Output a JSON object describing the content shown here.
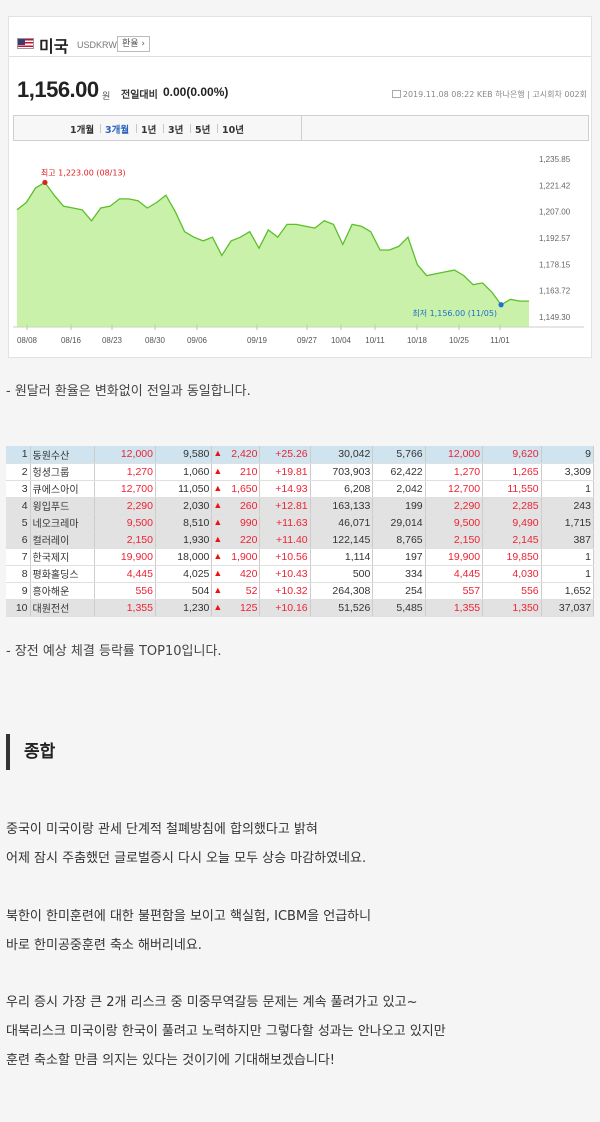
{
  "widget": {
    "title": "미국",
    "code": "USDKRW",
    "button_label": "환율 ›",
    "price": "1,156.00",
    "unit": "원",
    "change_label": "전일대비",
    "change_value": "0.00",
    "change_pct": "(0.00%)",
    "meta": "2019.11.08 08:22  KEB 하나은행 | 고시회차 002회",
    "flag_icon": "us-flag-icon",
    "tabs": [
      {
        "label": "1개월",
        "selected": false
      },
      {
        "label": "3개월",
        "selected": true
      },
      {
        "label": "1년",
        "selected": false
      },
      {
        "label": "3년",
        "selected": false
      },
      {
        "label": "5년",
        "selected": false
      },
      {
        "label": "10년",
        "selected": false
      }
    ]
  },
  "chart_data": {
    "type": "area",
    "ylim": [
      1149.3,
      1235.85
    ],
    "y_ticks": [
      "1,235.85",
      "1,221.42",
      "1,207.00",
      "1,192.57",
      "1,178.15",
      "1,163.72",
      "1,149.30"
    ],
    "x_ticks": [
      "08/08",
      "08/16",
      "08/23",
      "08/30",
      "09/06",
      "09/19",
      "09/27",
      "10/04",
      "10/11",
      "10/18",
      "10/25",
      "11/01"
    ],
    "high_label": "최고 1,223.00 (08/13)",
    "low_label": "최저 1,156.00 (11/05)",
    "values": [
      1208,
      1212,
      1220,
      1223,
      1216,
      1210,
      1209,
      1208,
      1202,
      1209,
      1210,
      1214,
      1214,
      1213,
      1209,
      1212,
      1216,
      1207,
      1196,
      1193,
      1191,
      1193,
      1183,
      1191,
      1193,
      1196,
      1187,
      1197,
      1193,
      1200,
      1200,
      1199,
      1198,
      1202,
      1200,
      1189,
      1200,
      1199,
      1196,
      1186,
      1186,
      1188,
      1193,
      1178,
      1172,
      1173,
      1174,
      1175,
      1172,
      1167,
      1168,
      1163,
      1156,
      1159,
      1158,
      1158
    ],
    "line_color": "#5cbf2a",
    "fill_color": "#b8ec8e",
    "high_color": "#e02020",
    "low_color": "#1e6fd0"
  },
  "caption1": "- 원달러 환율은 변화없이 전일과 동일합니다.",
  "table": {
    "rows": [
      {
        "rank": "1",
        "name": "동원수산",
        "c1": "12,000",
        "c2": "9,580",
        "chg": "2,420",
        "pct": "+25.26",
        "c5": "30,042",
        "c6": "5,766",
        "c7": "12,000",
        "c8": "9,620",
        "c9": "9",
        "style": "hl"
      },
      {
        "rank": "2",
        "name": "헝셩그룹",
        "c1": "1,270",
        "c2": "1,060",
        "chg": "210",
        "pct": "+19.81",
        "c5": "703,903",
        "c6": "62,422",
        "c7": "1,270",
        "c8": "1,265",
        "c9": "3,309",
        "style": "white"
      },
      {
        "rank": "3",
        "name": "큐에스아이",
        "c1": "12,700",
        "c2": "11,050",
        "chg": "1,650",
        "pct": "+14.93",
        "c5": "6,208",
        "c6": "2,042",
        "c7": "12,700",
        "c8": "11,550",
        "c9": "1",
        "style": "white"
      },
      {
        "rank": "4",
        "name": "윙입푸드",
        "c1": "2,290",
        "c2": "2,030",
        "chg": "260",
        "pct": "+12.81",
        "c5": "163,133",
        "c6": "199",
        "c7": "2,290",
        "c8": "2,285",
        "c9": "243",
        "style": "gray"
      },
      {
        "rank": "5",
        "name": "네오크레마",
        "c1": "9,500",
        "c2": "8,510",
        "chg": "990",
        "pct": "+11.63",
        "c5": "46,071",
        "c6": "29,014",
        "c7": "9,500",
        "c8": "9,490",
        "c9": "1,715",
        "style": "gray"
      },
      {
        "rank": "6",
        "name": "컬러레이",
        "c1": "2,150",
        "c2": "1,930",
        "chg": "220",
        "pct": "+11.40",
        "c5": "122,145",
        "c6": "8,765",
        "c7": "2,150",
        "c8": "2,145",
        "c9": "387",
        "style": "gray"
      },
      {
        "rank": "7",
        "name": "한국제지",
        "c1": "19,900",
        "c2": "18,000",
        "chg": "1,900",
        "pct": "+10.56",
        "c5": "1,114",
        "c6": "197",
        "c7": "19,900",
        "c8": "19,850",
        "c9": "1",
        "style": "white"
      },
      {
        "rank": "8",
        "name": "평화홀딩스",
        "c1": "4,445",
        "c2": "4,025",
        "chg": "420",
        "pct": "+10.43",
        "c5": "500",
        "c6": "334",
        "c7": "4,445",
        "c8": "4,030",
        "c9": "1",
        "style": "white"
      },
      {
        "rank": "9",
        "name": "흥아해운",
        "c1": "556",
        "c2": "504",
        "chg": "52",
        "pct": "+10.32",
        "c5": "264,308",
        "c6": "254",
        "c7": "557",
        "c8": "556",
        "c9": "1,652",
        "style": "white"
      },
      {
        "rank": "10",
        "name": "대원전선",
        "c1": "1,355",
        "c2": "1,230",
        "chg": "125",
        "pct": "+10.16",
        "c5": "51,526",
        "c6": "5,485",
        "c7": "1,355",
        "c8": "1,350",
        "c9": "37,037",
        "style": "gray"
      }
    ]
  },
  "caption2": "- 장전 예상 체결 등락률 TOP10입니다.",
  "section_heading": "종합",
  "paragraphs": [
    [
      "중국이 미국이랑 관세 단계적 철폐방침에 합의했다고 밝혀",
      "어제 잠시 주춤했던 글로벌증시 다시 오늘 모두 상승 마감하였네요."
    ],
    [
      "북한이 한미훈련에 대한 불편함을 보이고 핵실험, ICBM을 언급하니",
      "바로 한미공중훈련 축소 해버리네요."
    ],
    [
      "우리 증시 가장 큰 2개 리스크 중 미중무역갈등 문제는 계속 풀려가고 있고~",
      "대북리스크 미국이랑 한국이 풀려고 노력하지만 그렇다할 성과는 안나오고 있지만",
      "훈련 축소할 만큼 의지는 있다는 것이기에 기대해보겠습니다!"
    ]
  ]
}
